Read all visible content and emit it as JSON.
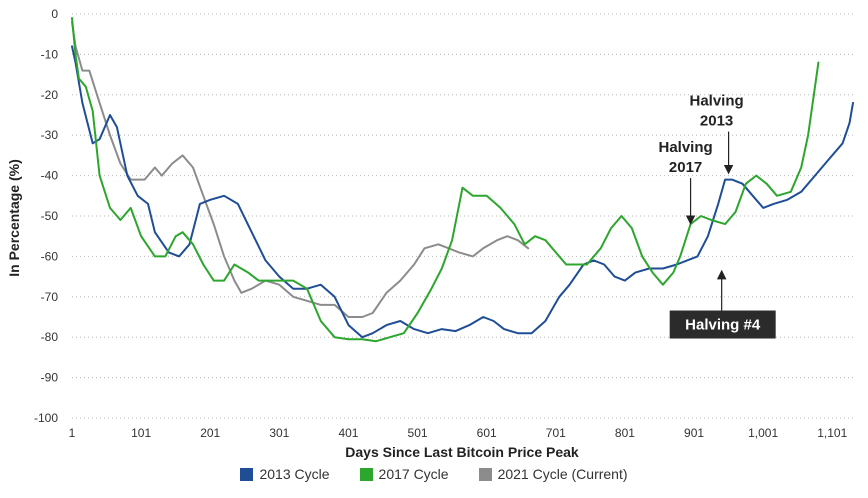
{
  "chart_data": {
    "type": "line",
    "xlabel": "Days Since Last Bitcoin Price Peak",
    "ylabel": "In Percentage (%)",
    "xlim": [
      1,
      1131
    ],
    "ylim": [
      -100,
      0
    ],
    "x_ticks": [
      1,
      101,
      201,
      301,
      401,
      501,
      601,
      701,
      801,
      901,
      1001,
      1101
    ],
    "x_tick_labels": [
      "1",
      "101",
      "201",
      "301",
      "401",
      "501",
      "601",
      "701",
      "801",
      "901",
      "1,001",
      "1,101"
    ],
    "y_ticks": [
      0,
      -10,
      -20,
      -30,
      -40,
      -50,
      -60,
      -70,
      -80,
      -90,
      -100
    ],
    "y_tick_labels": [
      "0",
      "-10",
      "-20",
      "-30",
      "-40",
      "-50",
      "-60",
      "-70",
      "-80",
      "-90",
      "-100"
    ],
    "grid": "horizontal dotted",
    "legend_position": "bottom",
    "series": [
      {
        "name": "2013 Cycle",
        "color": "#1f4e96",
        "points": [
          [
            1,
            -8
          ],
          [
            6,
            -12
          ],
          [
            16,
            -22
          ],
          [
            31,
            -32
          ],
          [
            41,
            -31
          ],
          [
            56,
            -25
          ],
          [
            66,
            -28
          ],
          [
            81,
            -40
          ],
          [
            96,
            -45
          ],
          [
            111,
            -47
          ],
          [
            121,
            -54
          ],
          [
            141,
            -59
          ],
          [
            156,
            -60
          ],
          [
            171,
            -57
          ],
          [
            186,
            -47
          ],
          [
            201,
            -46
          ],
          [
            221,
            -45
          ],
          [
            241,
            -47
          ],
          [
            261,
            -54
          ],
          [
            281,
            -61
          ],
          [
            301,
            -65
          ],
          [
            321,
            -68
          ],
          [
            341,
            -68
          ],
          [
            361,
            -67
          ],
          [
            381,
            -70
          ],
          [
            401,
            -77
          ],
          [
            421,
            -80
          ],
          [
            436,
            -79
          ],
          [
            456,
            -77
          ],
          [
            476,
            -76
          ],
          [
            496,
            -78
          ],
          [
            516,
            -79
          ],
          [
            536,
            -78
          ],
          [
            556,
            -78.5
          ],
          [
            576,
            -77
          ],
          [
            596,
            -75
          ],
          [
            611,
            -76
          ],
          [
            626,
            -78
          ],
          [
            646,
            -79
          ],
          [
            666,
            -79
          ],
          [
            686,
            -76
          ],
          [
            706,
            -70
          ],
          [
            721,
            -67
          ],
          [
            741,
            -62
          ],
          [
            756,
            -61
          ],
          [
            771,
            -62
          ],
          [
            786,
            -65
          ],
          [
            801,
            -66
          ],
          [
            816,
            -64
          ],
          [
            836,
            -63
          ],
          [
            856,
            -63
          ],
          [
            876,
            -62
          ],
          [
            891,
            -61
          ],
          [
            906,
            -60
          ],
          [
            921,
            -55
          ],
          [
            936,
            -47
          ],
          [
            946,
            -41
          ],
          [
            956,
            -41
          ],
          [
            971,
            -42
          ],
          [
            991,
            -46
          ],
          [
            1001,
            -48
          ],
          [
            1016,
            -47
          ],
          [
            1036,
            -46
          ],
          [
            1056,
            -44
          ],
          [
            1076,
            -40
          ],
          [
            1096,
            -36
          ],
          [
            1116,
            -32
          ],
          [
            1126,
            -27
          ],
          [
            1131,
            -22
          ]
        ]
      },
      {
        "name": "2017 Cycle",
        "color": "#2ca62c",
        "points": [
          [
            1,
            -1
          ],
          [
            6,
            -10
          ],
          [
            11,
            -16
          ],
          [
            21,
            -18
          ],
          [
            31,
            -24
          ],
          [
            41,
            -40
          ],
          [
            56,
            -48
          ],
          [
            71,
            -51
          ],
          [
            86,
            -48
          ],
          [
            101,
            -55
          ],
          [
            121,
            -60
          ],
          [
            136,
            -60
          ],
          [
            151,
            -55
          ],
          [
            161,
            -54
          ],
          [
            176,
            -57
          ],
          [
            191,
            -62
          ],
          [
            206,
            -66
          ],
          [
            221,
            -66
          ],
          [
            236,
            -62
          ],
          [
            256,
            -64
          ],
          [
            271,
            -66
          ],
          [
            286,
            -66
          ],
          [
            301,
            -66
          ],
          [
            321,
            -66
          ],
          [
            341,
            -68
          ],
          [
            361,
            -76
          ],
          [
            381,
            -80
          ],
          [
            401,
            -80.5
          ],
          [
            421,
            -80.5
          ],
          [
            441,
            -81
          ],
          [
            461,
            -80
          ],
          [
            481,
            -79
          ],
          [
            501,
            -74
          ],
          [
            521,
            -68
          ],
          [
            536,
            -63
          ],
          [
            551,
            -56
          ],
          [
            566,
            -43
          ],
          [
            581,
            -45
          ],
          [
            601,
            -45
          ],
          [
            621,
            -48
          ],
          [
            641,
            -52
          ],
          [
            656,
            -57
          ],
          [
            671,
            -55
          ],
          [
            686,
            -56
          ],
          [
            701,
            -59
          ],
          [
            716,
            -62
          ],
          [
            731,
            -62
          ],
          [
            746,
            -62
          ],
          [
            766,
            -58
          ],
          [
            781,
            -53
          ],
          [
            796,
            -50
          ],
          [
            811,
            -53
          ],
          [
            826,
            -60
          ],
          [
            841,
            -64
          ],
          [
            856,
            -67
          ],
          [
            871,
            -64
          ],
          [
            881,
            -60
          ],
          [
            896,
            -52
          ],
          [
            911,
            -50
          ],
          [
            926,
            -51
          ],
          [
            946,
            -52
          ],
          [
            961,
            -49
          ],
          [
            976,
            -42
          ],
          [
            991,
            -40
          ],
          [
            1006,
            -42
          ],
          [
            1021,
            -45
          ],
          [
            1041,
            -44
          ],
          [
            1056,
            -38
          ],
          [
            1066,
            -30
          ],
          [
            1076,
            -18
          ],
          [
            1081,
            -12
          ]
        ]
      },
      {
        "name": "2021 Cycle (Current)",
        "color": "#8c8c8c",
        "points": [
          [
            1,
            -2
          ],
          [
            6,
            -8
          ],
          [
            16,
            -14
          ],
          [
            26,
            -14
          ],
          [
            41,
            -22
          ],
          [
            56,
            -30
          ],
          [
            71,
            -37
          ],
          [
            86,
            -41
          ],
          [
            106,
            -41
          ],
          [
            121,
            -38
          ],
          [
            131,
            -40
          ],
          [
            146,
            -37
          ],
          [
            161,
            -35
          ],
          [
            176,
            -38
          ],
          [
            191,
            -45
          ],
          [
            206,
            -52
          ],
          [
            221,
            -60
          ],
          [
            236,
            -66
          ],
          [
            246,
            -69
          ],
          [
            261,
            -68
          ],
          [
            281,
            -66
          ],
          [
            301,
            -67
          ],
          [
            321,
            -70
          ],
          [
            341,
            -71
          ],
          [
            361,
            -72
          ],
          [
            381,
            -72
          ],
          [
            401,
            -75
          ],
          [
            421,
            -75
          ],
          [
            436,
            -74
          ],
          [
            456,
            -69
          ],
          [
            476,
            -66
          ],
          [
            496,
            -62
          ],
          [
            511,
            -58
          ],
          [
            531,
            -57
          ],
          [
            546,
            -58
          ],
          [
            561,
            -59
          ],
          [
            581,
            -60
          ],
          [
            596,
            -58
          ],
          [
            616,
            -56
          ],
          [
            631,
            -55
          ],
          [
            646,
            -56
          ],
          [
            661,
            -58
          ]
        ]
      }
    ],
    "annotations": [
      {
        "label_lines": [
          "Halving",
          "2013"
        ],
        "x": 951,
        "y": -40
      },
      {
        "label_lines": [
          "Halving",
          "2017"
        ],
        "x": 896,
        "y": -52
      },
      {
        "label_lines": [
          "Halving #4"
        ],
        "x": 941,
        "y": -63,
        "boxed": true
      }
    ]
  }
}
